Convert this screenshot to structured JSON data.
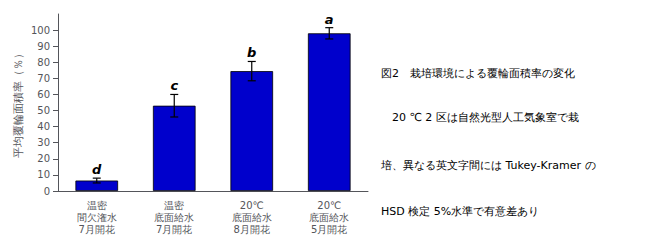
{
  "chart_data": {
    "type": "bar",
    "categories": [
      "温密\n間欠潅水\n7月開花",
      "温密\n底面給水\n7月開花",
      "20℃\n底面給水\n8月開花",
      "20℃\n底面給水\n5月開花"
    ],
    "values": [
      6.5,
      53.0,
      74.5,
      98.0
    ],
    "errors": [
      1.5,
      7.0,
      6.0,
      3.5
    ],
    "annotations": [
      "d",
      "c",
      "b",
      "a"
    ],
    "color": "#0000CC",
    "ylabel": "平均覆輪面積率（％）",
    "ylim": [
      0,
      110
    ],
    "yticks": [
      0,
      10,
      20,
      30,
      40,
      50,
      60,
      70,
      80,
      90,
      100
    ],
    "grid": false,
    "caption": [
      "図2　栽培環境による覆輪面積率の変化",
      "　20 ℃ 2 区は自然光型人工気象室で栽",
      "培、異なる英文字間には Tukey-Kramer の",
      "HSD 検定 5%水準で有意差あり"
    ]
  }
}
